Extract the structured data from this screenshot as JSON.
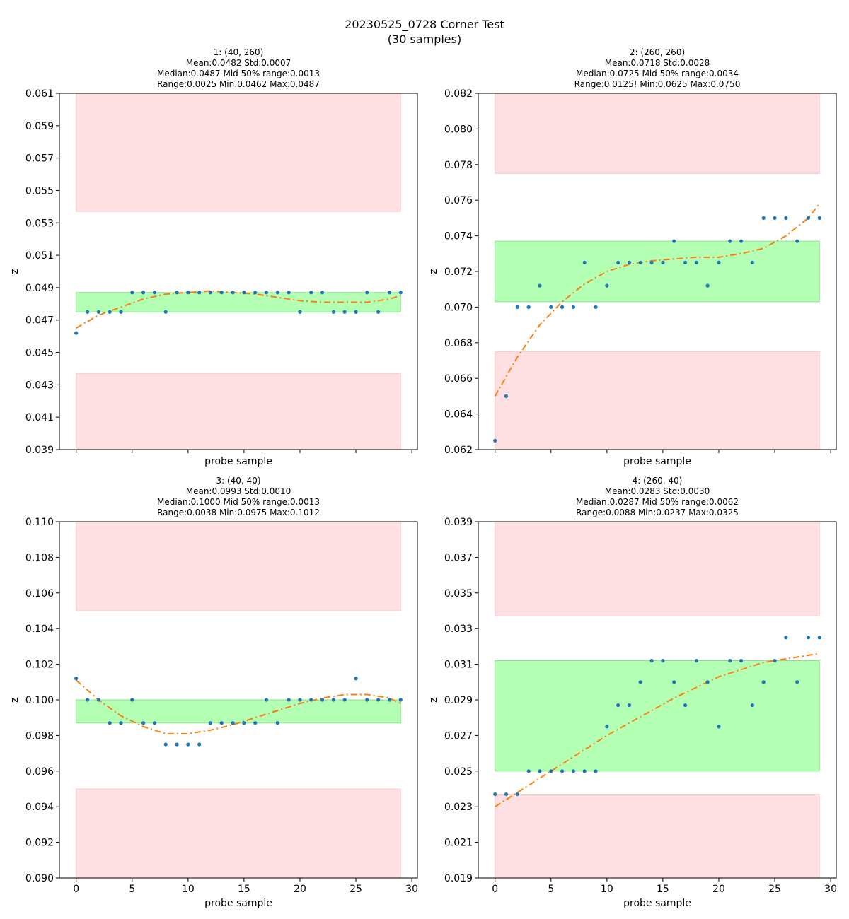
{
  "figure": {
    "title_line1": "20230525_0728 Corner Test",
    "title_line2": "(30 samples)"
  },
  "colors": {
    "points": "#1f77b4",
    "fit": "#ff7f0e",
    "band_fill": "#b3ffb3",
    "band_edge": "#8fdf8f",
    "danger_fill": "#ffe0e2",
    "danger_edge": "#ffc9ce"
  },
  "chart_data": [
    {
      "type": "scatter",
      "title_lines": [
        "1: (40, 260)",
        "Mean:0.0482  Std:0.0007",
        "Median:0.0487  Mid 50% range:0.0013",
        "Range:0.0025  Min:0.0462  Max:0.0487"
      ],
      "xlabel": "probe sample",
      "ylabel": "z",
      "xlim": [
        -1.5,
        30.5
      ],
      "ylim": [
        0.039,
        0.061
      ],
      "yticks": [
        "0.039",
        "0.041",
        "0.043",
        "0.045",
        "0.047",
        "0.049",
        "0.051",
        "0.053",
        "0.055",
        "0.057",
        "0.059",
        "0.061"
      ],
      "xticks": [
        0,
        5,
        10,
        15,
        20,
        25,
        30
      ],
      "show_xtick_labels": false,
      "x": [
        0,
        1,
        2,
        3,
        4,
        5,
        6,
        7,
        8,
        9,
        10,
        11,
        12,
        13,
        14,
        15,
        16,
        17,
        18,
        19,
        20,
        21,
        22,
        23,
        24,
        25,
        26,
        27,
        28,
        29
      ],
      "y": [
        0.0462,
        0.0475,
        0.0475,
        0.0475,
        0.0475,
        0.0487,
        0.0487,
        0.0487,
        0.0475,
        0.0487,
        0.0487,
        0.0487,
        0.0487,
        0.0487,
        0.0487,
        0.0487,
        0.0487,
        0.0487,
        0.0487,
        0.0487,
        0.0475,
        0.0487,
        0.0487,
        0.0475,
        0.0475,
        0.0475,
        0.0487,
        0.0475,
        0.0487,
        0.0487
      ],
      "fit": [
        [
          0,
          0.0465
        ],
        [
          2,
          0.0473
        ],
        [
          4,
          0.0478
        ],
        [
          6,
          0.0483
        ],
        [
          8,
          0.0486
        ],
        [
          10,
          0.0487
        ],
        [
          12,
          0.0488
        ],
        [
          14,
          0.0487
        ],
        [
          16,
          0.0486
        ],
        [
          18,
          0.0484
        ],
        [
          20,
          0.0482
        ],
        [
          22,
          0.0481
        ],
        [
          24,
          0.0481
        ],
        [
          26,
          0.0481
        ],
        [
          28,
          0.0483
        ],
        [
          29,
          0.0485
        ]
      ],
      "band": {
        "x": [
          0,
          29
        ],
        "y": [
          0.0475,
          0.0487
        ]
      },
      "danger_low": {
        "x": [
          0,
          29
        ],
        "y": [
          0.039,
          0.0437
        ]
      },
      "danger_high": {
        "x": [
          0,
          29
        ],
        "y": [
          0.0537,
          0.061
        ]
      }
    },
    {
      "type": "scatter",
      "title_lines": [
        "2: (260, 260)",
        "Mean:0.0718  Std:0.0028",
        "Median:0.0725  Mid 50% range:0.0034",
        "Range:0.0125!  Min:0.0625  Max:0.0750"
      ],
      "xlabel": "probe sample",
      "ylabel": "z",
      "xlim": [
        -1.5,
        30.5
      ],
      "ylim": [
        0.062,
        0.082
      ],
      "yticks": [
        "0.062",
        "0.064",
        "0.066",
        "0.068",
        "0.070",
        "0.072",
        "0.074",
        "0.076",
        "0.078",
        "0.080",
        "0.082"
      ],
      "xticks": [
        0,
        5,
        10,
        15,
        20,
        25,
        30
      ],
      "show_xtick_labels": false,
      "x": [
        0,
        1,
        2,
        3,
        4,
        5,
        6,
        7,
        8,
        9,
        10,
        11,
        12,
        13,
        14,
        15,
        16,
        17,
        18,
        19,
        20,
        21,
        22,
        23,
        24,
        25,
        26,
        27,
        28,
        29
      ],
      "y": [
        0.0625,
        0.065,
        0.07,
        0.07,
        0.0712,
        0.07,
        0.07,
        0.07,
        0.0725,
        0.07,
        0.0712,
        0.0725,
        0.0725,
        0.0725,
        0.0725,
        0.0725,
        0.0737,
        0.0725,
        0.0725,
        0.0712,
        0.0725,
        0.0737,
        0.0737,
        0.0725,
        0.075,
        0.075,
        0.075,
        0.0737,
        0.075,
        0.075
      ],
      "fit": [
        [
          0,
          0.065
        ],
        [
          2,
          0.0672
        ],
        [
          4,
          0.069
        ],
        [
          6,
          0.0703
        ],
        [
          8,
          0.0713
        ],
        [
          10,
          0.072
        ],
        [
          12,
          0.0724
        ],
        [
          14,
          0.0726
        ],
        [
          16,
          0.0727
        ],
        [
          18,
          0.0728
        ],
        [
          20,
          0.0728
        ],
        [
          22,
          0.073
        ],
        [
          24,
          0.0733
        ],
        [
          26,
          0.074
        ],
        [
          28,
          0.075
        ],
        [
          29,
          0.0758
        ]
      ],
      "band": {
        "x": [
          0,
          29
        ],
        "y": [
          0.0703,
          0.0737
        ]
      },
      "danger_low": {
        "x": [
          0,
          29
        ],
        "y": [
          0.062,
          0.0675
        ]
      },
      "danger_high": {
        "x": [
          0,
          29
        ],
        "y": [
          0.0775,
          0.082
        ]
      }
    },
    {
      "type": "scatter",
      "title_lines": [
        "3: (40, 40)",
        "Mean:0.0993  Std:0.0010",
        "Median:0.1000  Mid 50% range:0.0013",
        "Range:0.0038  Min:0.0975  Max:0.1012"
      ],
      "xlabel": "probe sample",
      "ylabel": "z",
      "xlim": [
        -1.5,
        30.5
      ],
      "ylim": [
        0.09,
        0.11
      ],
      "yticks": [
        "0.090",
        "0.092",
        "0.094",
        "0.096",
        "0.098",
        "0.100",
        "0.102",
        "0.104",
        "0.106",
        "0.108",
        "0.110"
      ],
      "xticks": [
        0,
        5,
        10,
        15,
        20,
        25,
        30
      ],
      "show_xtick_labels": true,
      "x": [
        0,
        1,
        2,
        3,
        4,
        5,
        6,
        7,
        8,
        9,
        10,
        11,
        12,
        13,
        14,
        15,
        16,
        17,
        18,
        19,
        20,
        21,
        22,
        23,
        24,
        25,
        26,
        27,
        28,
        29
      ],
      "y": [
        0.1012,
        0.1,
        0.1,
        0.0987,
        0.0987,
        0.1,
        0.0987,
        0.0987,
        0.0975,
        0.0975,
        0.0975,
        0.0975,
        0.0987,
        0.0987,
        0.0987,
        0.0987,
        0.0987,
        0.1,
        0.0987,
        0.1,
        0.1,
        0.1,
        0.1,
        0.1,
        0.1,
        0.1012,
        0.1,
        0.1,
        0.1,
        0.1
      ],
      "fit": [
        [
          0,
          0.1011
        ],
        [
          2,
          0.1
        ],
        [
          4,
          0.0991
        ],
        [
          6,
          0.0985
        ],
        [
          8,
          0.0981
        ],
        [
          10,
          0.0981
        ],
        [
          12,
          0.0983
        ],
        [
          14,
          0.0986
        ],
        [
          16,
          0.099
        ],
        [
          18,
          0.0994
        ],
        [
          20,
          0.0998
        ],
        [
          22,
          0.1001
        ],
        [
          24,
          0.1003
        ],
        [
          25,
          0.1003
        ],
        [
          26,
          0.1003
        ],
        [
          28,
          0.1001
        ],
        [
          29,
          0.0998
        ]
      ],
      "band": {
        "x": [
          0,
          29
        ],
        "y": [
          0.0987,
          0.1
        ]
      },
      "danger_low": {
        "x": [
          0,
          29
        ],
        "y": [
          0.09,
          0.095
        ]
      },
      "danger_high": {
        "x": [
          0,
          29
        ],
        "y": [
          0.105,
          0.11
        ]
      }
    },
    {
      "type": "scatter",
      "title_lines": [
        "4: (260, 40)",
        "Mean:0.0283  Std:0.0030",
        "Median:0.0287  Mid 50% range:0.0062",
        "Range:0.0088  Min:0.0237  Max:0.0325"
      ],
      "xlabel": "probe sample",
      "ylabel": "z",
      "xlim": [
        -1.5,
        30.5
      ],
      "ylim": [
        0.019,
        0.039
      ],
      "yticks": [
        "0.019",
        "0.021",
        "0.023",
        "0.025",
        "0.027",
        "0.029",
        "0.031",
        "0.033",
        "0.035",
        "0.037",
        "0.039"
      ],
      "xticks": [
        0,
        5,
        10,
        15,
        20,
        25,
        30
      ],
      "show_xtick_labels": true,
      "x": [
        0,
        1,
        2,
        3,
        4,
        5,
        6,
        7,
        8,
        9,
        10,
        11,
        12,
        13,
        14,
        15,
        16,
        17,
        18,
        19,
        20,
        21,
        22,
        23,
        24,
        25,
        26,
        27,
        28,
        29
      ],
      "y": [
        0.0237,
        0.0237,
        0.0237,
        0.025,
        0.025,
        0.025,
        0.025,
        0.025,
        0.025,
        0.025,
        0.0275,
        0.0287,
        0.0287,
        0.03,
        0.0312,
        0.0312,
        0.03,
        0.0287,
        0.0312,
        0.03,
        0.0275,
        0.0312,
        0.0312,
        0.0287,
        0.03,
        0.0312,
        0.0325,
        0.03,
        0.0325,
        0.0325
      ],
      "fit": [
        [
          0,
          0.023
        ],
        [
          2,
          0.0238
        ],
        [
          4,
          0.0246
        ],
        [
          6,
          0.0254
        ],
        [
          8,
          0.0262
        ],
        [
          10,
          0.027
        ],
        [
          12,
          0.0277
        ],
        [
          14,
          0.0284
        ],
        [
          16,
          0.0291
        ],
        [
          18,
          0.0297
        ],
        [
          20,
          0.0303
        ],
        [
          22,
          0.0307
        ],
        [
          24,
          0.0311
        ],
        [
          26,
          0.0313
        ],
        [
          28,
          0.0315
        ],
        [
          29,
          0.0316
        ]
      ],
      "band": {
        "x": [
          0,
          29
        ],
        "y": [
          0.025,
          0.0312
        ]
      },
      "danger_low": {
        "x": [
          0,
          29
        ],
        "y": [
          0.019,
          0.0237
        ]
      },
      "danger_high": {
        "x": [
          0,
          29
        ],
        "y": [
          0.0337,
          0.039
        ]
      }
    }
  ]
}
